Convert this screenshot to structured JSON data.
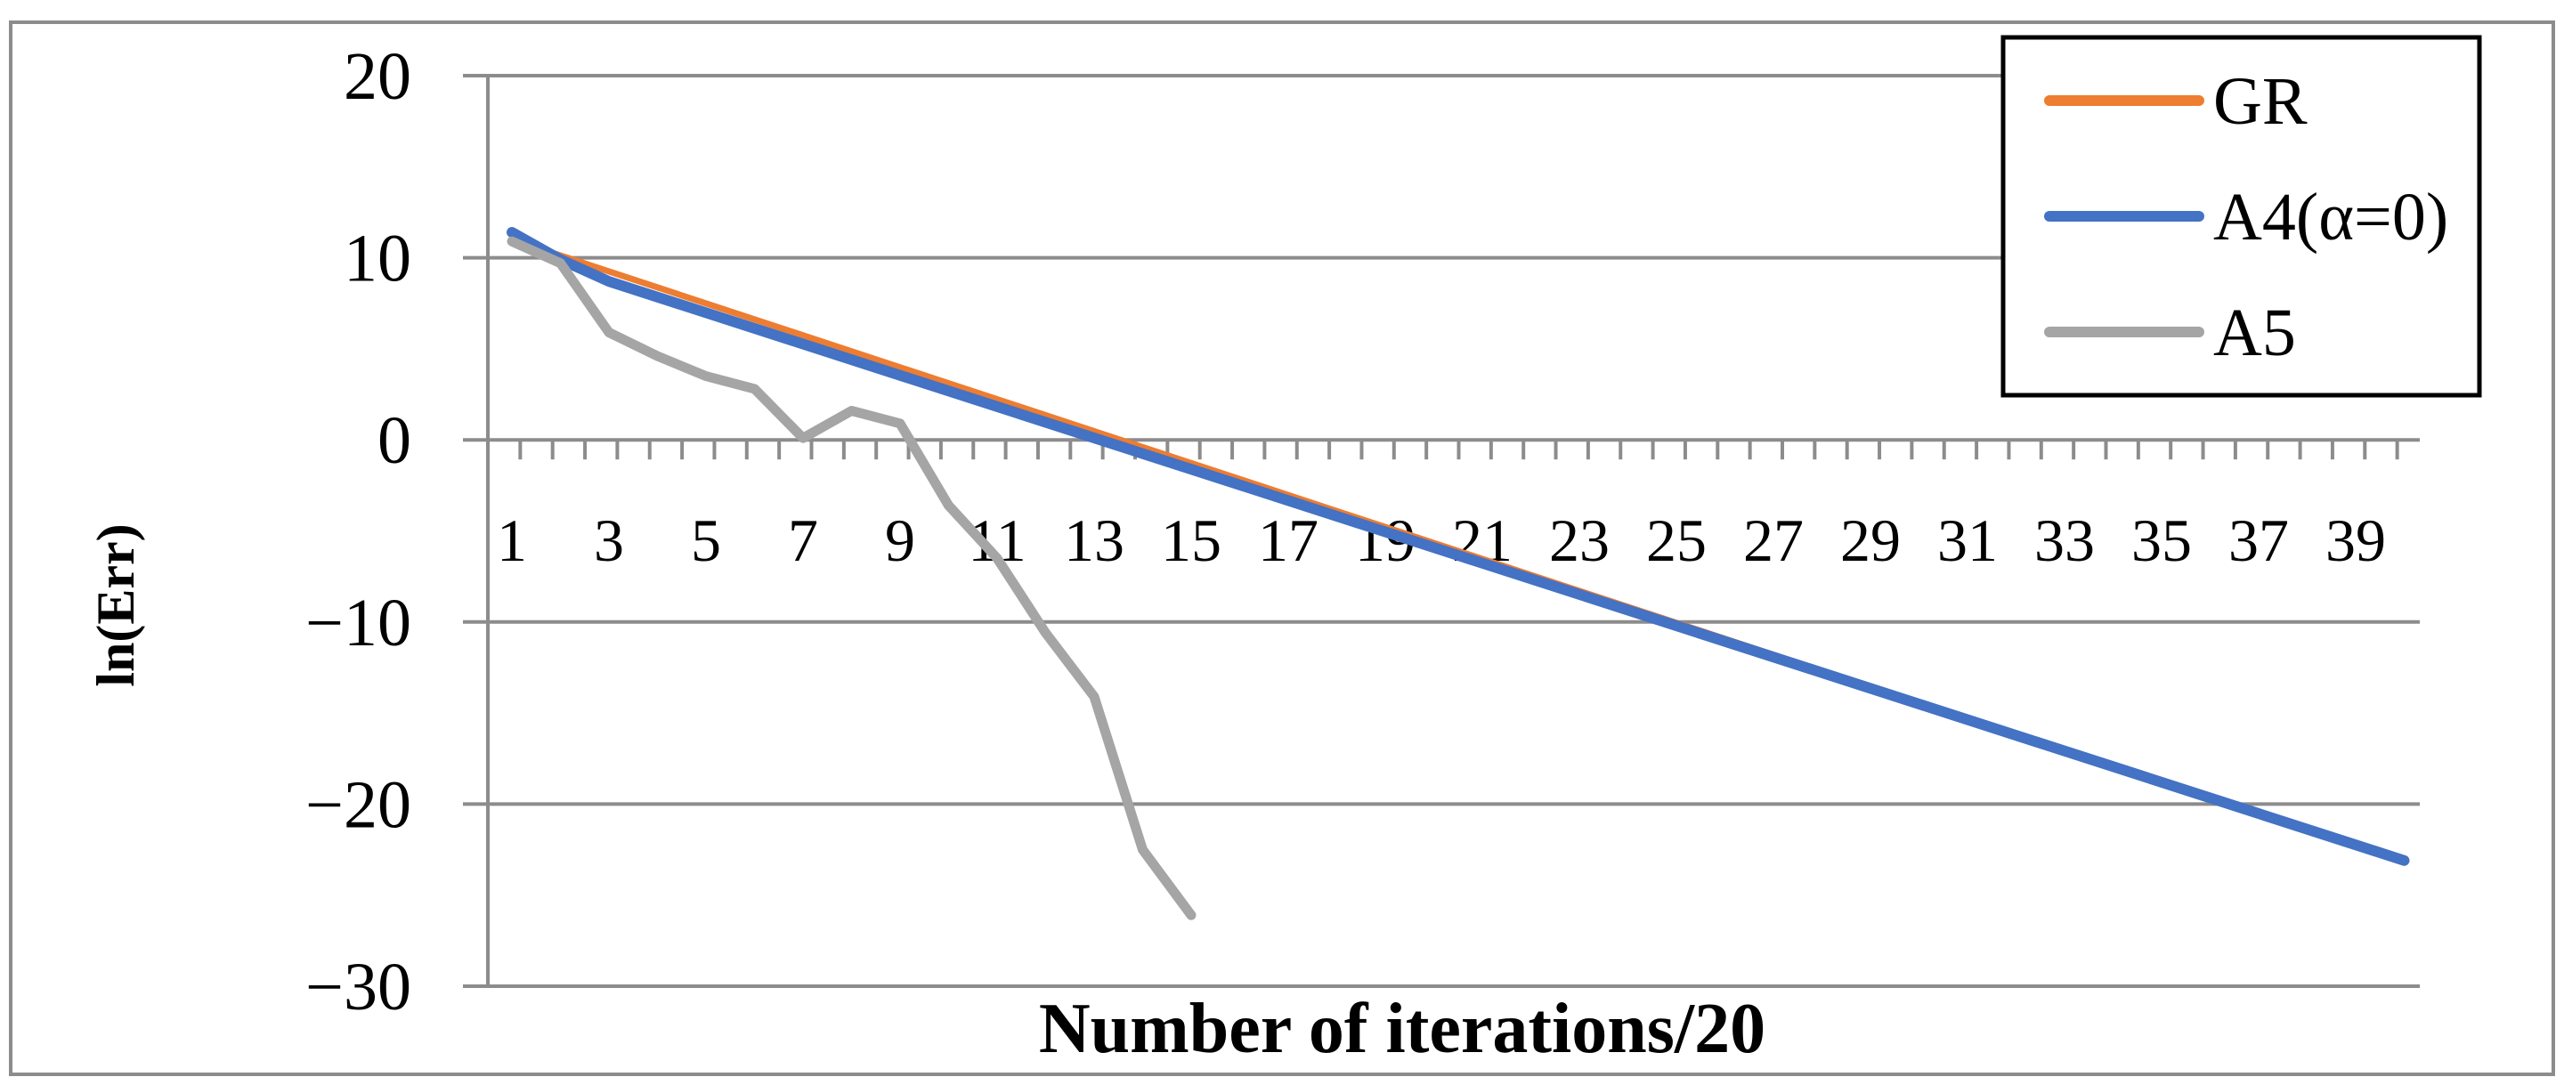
{
  "chart_data": {
    "type": "line",
    "title": "",
    "xlabel": "Number of iterations/20",
    "ylabel": "ln(Err)",
    "ylim": [
      -30,
      20
    ],
    "yticks": [
      20,
      10,
      0,
      -10,
      -20,
      -30
    ],
    "ytick_labels": [
      "20",
      "10",
      "0",
      "−10",
      "−20",
      "−30"
    ],
    "x_tick_labels": [
      "1",
      "3",
      "5",
      "7",
      "9",
      "11",
      "13",
      "15",
      "17",
      "19",
      "21",
      "23",
      "25",
      "27",
      "29",
      "31",
      "33",
      "35",
      "37",
      "39"
    ],
    "grid": true,
    "legend_position": "top-right",
    "series": [
      {
        "name": "GR",
        "color": "#ED7D31",
        "x": [
          1,
          40
        ],
        "values": [
          11.0,
          -23.2
        ]
      },
      {
        "name": "A4(α=0)",
        "color": "#4472C4",
        "x": [
          1,
          2,
          3,
          40
        ],
        "values": [
          11.4,
          9.9,
          8.7,
          -23.1
        ]
      },
      {
        "name": "A5",
        "color": "#A5A5A5",
        "x": [
          1,
          2,
          3,
          4,
          5,
          6,
          7,
          8,
          9,
          10,
          11,
          12,
          13,
          14,
          15
        ],
        "values": [
          10.9,
          9.7,
          5.9,
          4.6,
          3.5,
          2.8,
          0.1,
          1.6,
          0.9,
          -3.6,
          -6.5,
          -10.6,
          -14.1,
          -22.5,
          -26.1
        ]
      }
    ]
  }
}
